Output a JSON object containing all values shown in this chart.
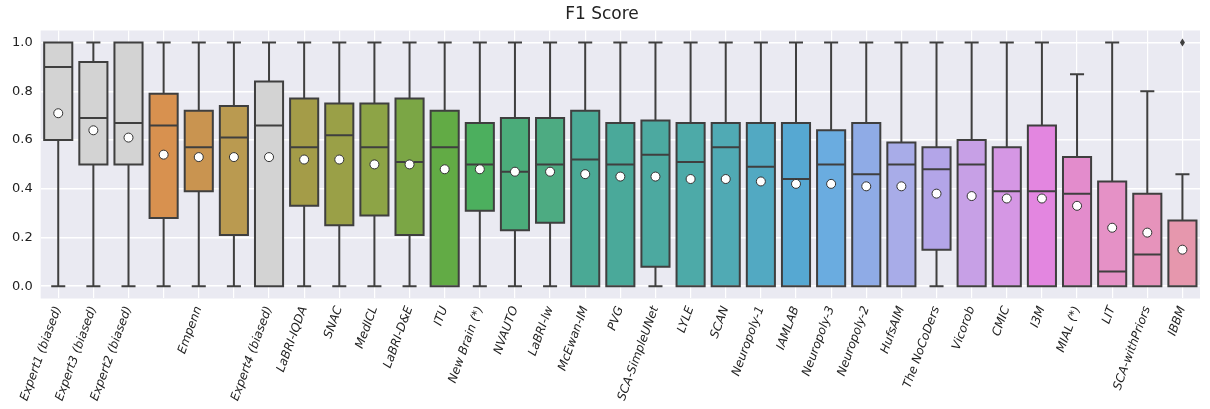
{
  "chart_data": {
    "type": "box",
    "title": "F1 Score",
    "categories": [
      "Expert1 (biased)",
      "Expert3 (biased)",
      "Expert2 (biased)",
      null,
      "Empenn",
      null,
      "Expert4 (biased)",
      "LaBRI-IQDA",
      "SNAC",
      "MedICL",
      "LaBRI-D&E",
      "ITU",
      "New Brain (*)",
      "NVAUTO",
      "LaBRI-lw",
      "McEwan-IM",
      "PVG",
      "SCA-SimpleUNet",
      "LYLE",
      "SCAN",
      "Neuropoly-1",
      "IAMLAB",
      "Neuropoly-3",
      "Neuropoly-2",
      "HufsAIM",
      "The NoCoDers",
      "Vicorob",
      "CMIC",
      "I3M",
      "MIAL (*)",
      "LIT",
      "SCA-withPriors",
      "IBBM"
    ],
    "boxes": [
      {
        "low": 0,
        "q1": 0.6,
        "median": 0.9,
        "q3": 1,
        "high": 1,
        "mean": 0.71
      },
      {
        "low": 0,
        "q1": 0.5,
        "median": 0.69,
        "q3": 0.92,
        "high": 1,
        "mean": 0.64
      },
      {
        "low": 0,
        "q1": 0.5,
        "median": 0.67,
        "q3": 1,
        "high": 1,
        "mean": 0.61
      },
      {
        "low": 0,
        "q1": 0.28,
        "median": 0.66,
        "q3": 0.79,
        "high": 1,
        "mean": 0.54
      },
      {
        "low": 0,
        "q1": 0.39,
        "median": 0.57,
        "q3": 0.72,
        "high": 1,
        "mean": 0.53
      },
      {
        "low": 0,
        "q1": 0.21,
        "median": 0.61,
        "q3": 0.74,
        "high": 1,
        "mean": 0.53
      },
      {
        "low": 0,
        "q1": 0,
        "median": 0.66,
        "q3": 0.84,
        "high": 1,
        "mean": 0.53
      },
      {
        "low": 0,
        "q1": 0.33,
        "median": 0.57,
        "q3": 0.77,
        "high": 1,
        "mean": 0.52
      },
      {
        "low": 0,
        "q1": 0.25,
        "median": 0.62,
        "q3": 0.75,
        "high": 1,
        "mean": 0.52
      },
      {
        "low": 0,
        "q1": 0.29,
        "median": 0.57,
        "q3": 0.75,
        "high": 1,
        "mean": 0.5
      },
      {
        "low": 0,
        "q1": 0.21,
        "median": 0.51,
        "q3": 0.77,
        "high": 1,
        "mean": 0.5
      },
      {
        "low": 0,
        "q1": 0,
        "median": 0.57,
        "q3": 0.72,
        "high": 1,
        "mean": 0.48
      },
      {
        "low": 0,
        "q1": 0.31,
        "median": 0.5,
        "q3": 0.67,
        "high": 1,
        "mean": 0.48
      },
      {
        "low": 0,
        "q1": 0.23,
        "median": 0.47,
        "q3": 0.69,
        "high": 1,
        "mean": 0.47
      },
      {
        "low": 0,
        "q1": 0.26,
        "median": 0.5,
        "q3": 0.69,
        "high": 1,
        "mean": 0.47
      },
      {
        "low": 0,
        "q1": 0,
        "median": 0.52,
        "q3": 0.72,
        "high": 1,
        "mean": 0.46
      },
      {
        "low": 0,
        "q1": 0,
        "median": 0.5,
        "q3": 0.67,
        "high": 1,
        "mean": 0.45
      },
      {
        "low": 0,
        "q1": 0.08,
        "median": 0.54,
        "q3": 0.68,
        "high": 1,
        "mean": 0.45
      },
      {
        "low": 0,
        "q1": 0,
        "median": 0.51,
        "q3": 0.67,
        "high": 1,
        "mean": 0.44
      },
      {
        "low": 0,
        "q1": 0,
        "median": 0.57,
        "q3": 0.67,
        "high": 1,
        "mean": 0.44
      },
      {
        "low": 0,
        "q1": 0,
        "median": 0.49,
        "q3": 0.67,
        "high": 1,
        "mean": 0.43
      },
      {
        "low": 0,
        "q1": 0,
        "median": 0.44,
        "q3": 0.67,
        "high": 1,
        "mean": 0.42
      },
      {
        "low": 0,
        "q1": 0,
        "median": 0.5,
        "q3": 0.64,
        "high": 1,
        "mean": 0.42
      },
      {
        "low": 0,
        "q1": 0,
        "median": 0.46,
        "q3": 0.67,
        "high": 1,
        "mean": 0.41
      },
      {
        "low": 0,
        "q1": 0,
        "median": 0.5,
        "q3": 0.59,
        "high": 1,
        "mean": 0.41
      },
      {
        "low": 0,
        "q1": 0.15,
        "median": 0.48,
        "q3": 0.57,
        "high": 1,
        "mean": 0.38
      },
      {
        "low": 0,
        "q1": 0,
        "median": 0.5,
        "q3": 0.6,
        "high": 1,
        "mean": 0.37
      },
      {
        "low": 0,
        "q1": 0,
        "median": 0.39,
        "q3": 0.57,
        "high": 1,
        "mean": 0.36
      },
      {
        "low": 0,
        "q1": 0,
        "median": 0.39,
        "q3": 0.66,
        "high": 1,
        "mean": 0.36
      },
      {
        "low": 0,
        "q1": 0,
        "median": 0.38,
        "q3": 0.53,
        "high": 0.87,
        "mean": 0.33
      },
      {
        "low": 0,
        "q1": 0,
        "median": 0.06,
        "q3": 0.43,
        "high": 1,
        "mean": 0.24
      },
      {
        "low": 0,
        "q1": 0,
        "median": 0.13,
        "q3": 0.38,
        "high": 0.8,
        "mean": 0.22
      },
      {
        "low": 0,
        "q1": 0,
        "median": 0,
        "q3": 0.27,
        "high": 0.46,
        "mean": 0.15,
        "outliers": [
          1
        ]
      }
    ],
    "colors": [
      "#d3d3d3",
      "#d3d3d3",
      "#d3d3d3",
      "#d8914f",
      "#c99450",
      "#ba9a50",
      "#d3d3d3",
      "#a49c48",
      "#9aa047",
      "#8da446",
      "#7ba645",
      "#62ab45",
      "#4caf5e",
      "#4bac7a",
      "#4dab82",
      "#4aa995",
      "#4aa99a",
      "#4ca9a0",
      "#4daaa8",
      "#50aab4",
      "#52a9c2",
      "#56a8d2",
      "#6aace0",
      "#8fabe6",
      "#a8ace8",
      "#b3a5e8",
      "#c7a0e6",
      "#d597e4",
      "#e386e0",
      "#e38ccc",
      "#e591c6",
      "#e693bb",
      "#e697ad"
    ],
    "ylim": [
      -0.05,
      1.05
    ],
    "yticks": [
      {
        "value": 0,
        "label": "0.0"
      },
      {
        "value": 0.2,
        "label": "0.2"
      },
      {
        "value": 0.4,
        "label": "0.4"
      },
      {
        "value": 0.6,
        "label": "0.6"
      },
      {
        "value": 0.8,
        "label": "0.8"
      },
      {
        "value": 1,
        "label": "1.0"
      }
    ],
    "grid": true
  }
}
